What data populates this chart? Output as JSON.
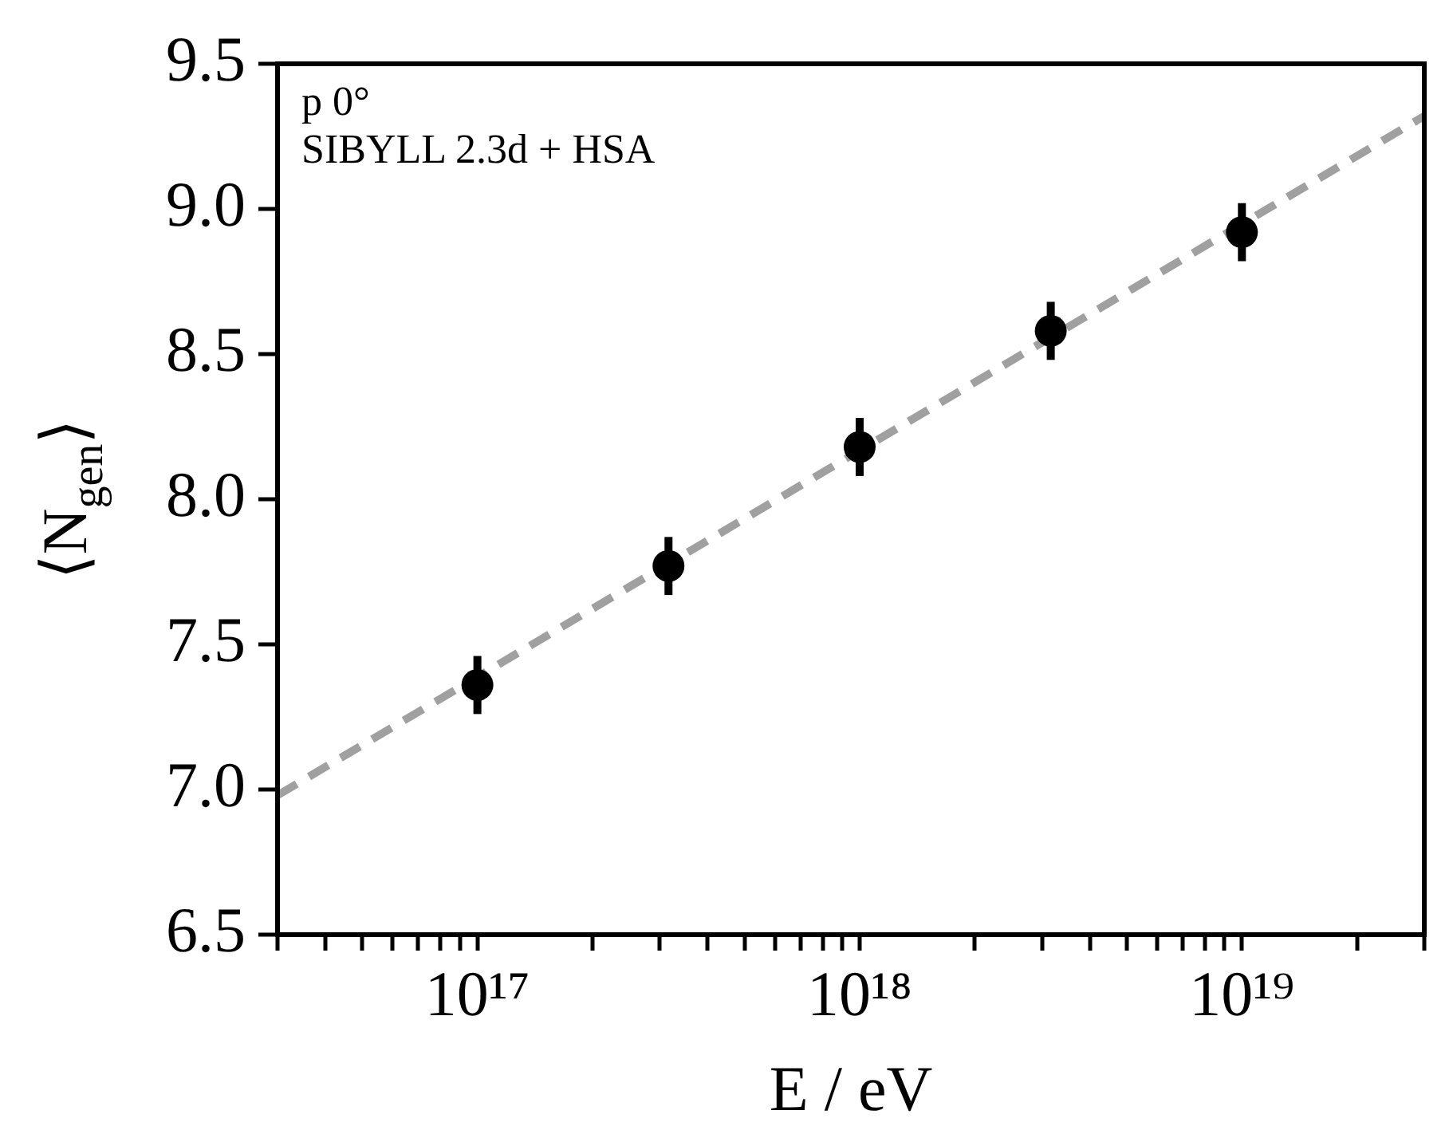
{
  "chart_data": {
    "type": "scatter",
    "xlabel": "E / eV",
    "ylabel": "⟨N$_{gen}$⟩",
    "annotations": [
      "p 0°",
      "SIBYLL 2.3d + HSA"
    ],
    "log": "x",
    "xlim": [
      3e+16,
      3e+19
    ],
    "ylim": [
      6.5,
      9.5
    ],
    "xticks": [
      {
        "value": 3e+16,
        "label": null
      },
      {
        "value": 4e+16,
        "label": null
      },
      {
        "value": 5e+16,
        "label": null
      },
      {
        "value": 6e+16,
        "label": null
      },
      {
        "value": 7e+16,
        "label": null
      },
      {
        "value": 8e+16,
        "label": null
      },
      {
        "value": 9e+16,
        "label": null
      },
      {
        "value": 1e+17,
        "label": "10¹⁷"
      },
      {
        "value": 2e+17,
        "label": null
      },
      {
        "value": 3e+17,
        "label": null
      },
      {
        "value": 4e+17,
        "label": null
      },
      {
        "value": 5e+17,
        "label": null
      },
      {
        "value": 6e+17,
        "label": null
      },
      {
        "value": 7e+17,
        "label": null
      },
      {
        "value": 8e+17,
        "label": null
      },
      {
        "value": 9e+17,
        "label": null
      },
      {
        "value": 1e+18,
        "label": "10¹⁸"
      },
      {
        "value": 2e+18,
        "label": null
      },
      {
        "value": 3e+18,
        "label": null
      },
      {
        "value": 4e+18,
        "label": null
      },
      {
        "value": 5e+18,
        "label": null
      },
      {
        "value": 6e+18,
        "label": null
      },
      {
        "value": 7e+18,
        "label": null
      },
      {
        "value": 8e+18,
        "label": null
      },
      {
        "value": 9e+18,
        "label": null
      },
      {
        "value": 1e+19,
        "label": "10¹⁹"
      },
      {
        "value": 2e+19,
        "label": null
      },
      {
        "value": 3e+19,
        "label": null
      }
    ],
    "yticks": [
      {
        "value": 6.5,
        "label": "6.5"
      },
      {
        "value": 7,
        "label": "7.0"
      },
      {
        "value": 7.5,
        "label": "7.5"
      },
      {
        "value": 8,
        "label": "8.0"
      },
      {
        "value": 8.5,
        "label": "8.5"
      },
      {
        "value": 9,
        "label": "9.0"
      },
      {
        "value": 9.5,
        "label": "9.5"
      }
    ],
    "grid": false,
    "series": [
      {
        "type": "line",
        "color": "#a0a0a0",
        "line_style": "dashed",
        "marker": "none",
        "x": [
          3e+16,
          3e+19
        ],
        "values": [
          6.98,
          9.32
        ]
      },
      {
        "type": "scatter",
        "color": "#000000",
        "marker": "circle",
        "x": [
          1e+17,
          3.162e+17,
          1e+18,
          3.162e+18,
          1e+19
        ],
        "values": [
          7.36,
          7.77,
          8.18,
          8.58,
          8.92
        ],
        "errors": [
          0.1,
          0.1,
          0.1,
          0.1,
          0.1
        ]
      }
    ]
  }
}
